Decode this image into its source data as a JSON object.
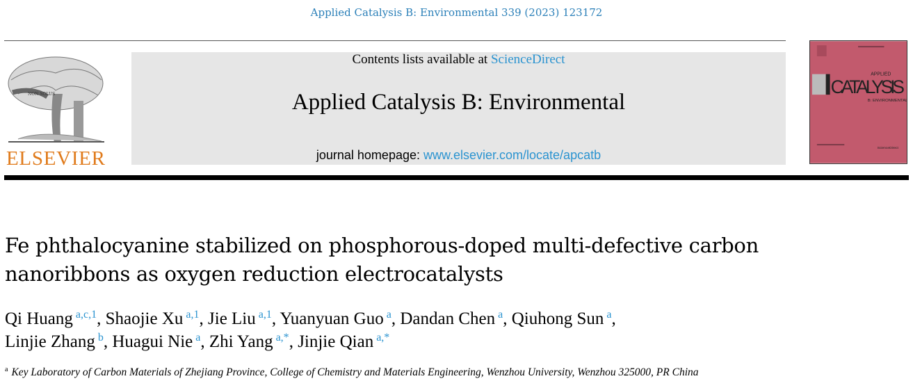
{
  "citation": "Applied Catalysis B: Environmental 339 (2023) 123172",
  "publisher": {
    "name": "ELSEVIER",
    "motto": "NON SOLUS",
    "color": "#e07b1c"
  },
  "banner": {
    "contents_prefix": "Contents lists available at ",
    "contents_link": "ScienceDirect",
    "journal_title": "Applied Catalysis B: Environmental",
    "homepage_prefix": "journal homepage: ",
    "homepage_link": "www.elsevier.com/locate/apcatb"
  },
  "cover": {
    "color": "#c25a6d",
    "applied": "APPLIED",
    "catalysis": "CATALYSIS",
    "subtitle": "B: ENVIRONMENTAL",
    "sciencedirect": "ScienceDirect"
  },
  "article": {
    "title": "Fe phthalocyanine stabilized on phosphorous-doped multi-defective carbon nanoribbons as oxygen reduction electrocatalysts",
    "authors": [
      {
        "name": "Qi Huang",
        "sup": "a,c,1"
      },
      {
        "name": "Shaojie Xu",
        "sup": "a,1"
      },
      {
        "name": "Jie Liu",
        "sup": "a,1"
      },
      {
        "name": "Yuanyuan Guo",
        "sup": "a"
      },
      {
        "name": "Dandan Chen",
        "sup": "a"
      },
      {
        "name": "Qiuhong Sun",
        "sup": "a"
      },
      {
        "name": "Linjie Zhang",
        "sup": "b"
      },
      {
        "name": "Huagui Nie",
        "sup": "a"
      },
      {
        "name": "Zhi Yang",
        "sup": "a,*"
      },
      {
        "name": "Jinjie Qian",
        "sup": "a,*"
      }
    ],
    "affiliation": {
      "mark": "a",
      "text": "Key Laboratory of Carbon Materials of Zhejiang Province, College of Chemistry and Materials Engineering, Wenzhou University, Wenzhou 325000, PR China"
    }
  }
}
